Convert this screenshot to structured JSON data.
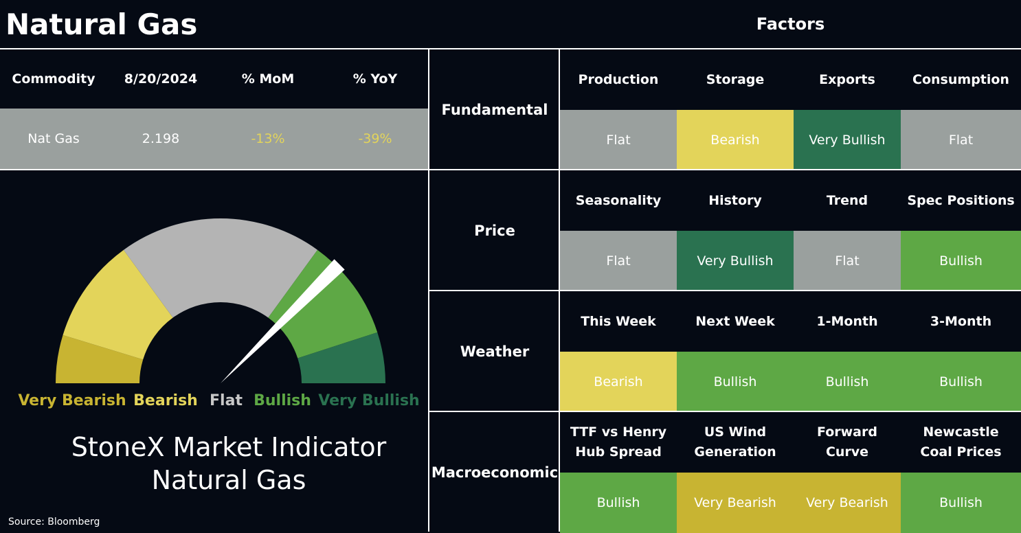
{
  "header": {
    "title": "Natural Gas",
    "factors": "Factors"
  },
  "summary": {
    "headers": [
      "Commodity",
      "8/20/2024",
      "% MoM",
      "% YoY"
    ],
    "row": [
      "Nat Gas",
      "2.198",
      "-13%",
      "-39%"
    ],
    "row_colors": [
      "#ffffff",
      "#ffffff",
      "#e3d45a",
      "#e3d45a"
    ]
  },
  "gauge": {
    "labels": [
      {
        "text": "Very Bearish",
        "color": "#c8b432"
      },
      {
        "text": "Bearish",
        "color": "#e3d45a"
      },
      {
        "text": "Flat",
        "color": "#c8c8c8"
      },
      {
        "text": "Bullish",
        "color": "#5ea845"
      },
      {
        "text": "Very Bullish",
        "color": "#2a7250"
      }
    ],
    "title": [
      "StoneX Market Indicator",
      "Natural Gas"
    ]
  },
  "source": "Source: Bloomberg",
  "groups": [
    {
      "name": "Fundamental",
      "items": [
        {
          "label": "Production",
          "signal": "Flat",
          "color": "#9aa09e"
        },
        {
          "label": "Storage",
          "signal": "Bearish",
          "color": "#e3d45a"
        },
        {
          "label": "Exports",
          "signal": "Very Bullish",
          "color": "#2a7250"
        },
        {
          "label": "Consumption",
          "signal": "Flat",
          "color": "#9aa09e"
        }
      ]
    },
    {
      "name": "Price",
      "items": [
        {
          "label": "Seasonality",
          "signal": "Flat",
          "color": "#9aa09e"
        },
        {
          "label": "History",
          "signal": "Very Bullish",
          "color": "#2a7250"
        },
        {
          "label": "Trend",
          "signal": "Flat",
          "color": "#9aa09e"
        },
        {
          "label": "Spec Positions",
          "signal": "Bullish",
          "color": "#5ea845"
        }
      ]
    },
    {
      "name": "Weather",
      "items": [
        {
          "label": "This Week",
          "signal": "Bearish",
          "color": "#e3d45a"
        },
        {
          "label": "Next Week",
          "signal": "Bullish",
          "color": "#5ea845"
        },
        {
          "label": "1-Month",
          "signal": "Bullish",
          "color": "#5ea845"
        },
        {
          "label": "3-Month",
          "signal": "Bullish",
          "color": "#5ea845"
        }
      ]
    },
    {
      "name": "Macroeconomic",
      "items": [
        {
          "label": "TTF vs Henry Hub Spread",
          "signal": "Bullish",
          "color": "#5ea845"
        },
        {
          "label": "US Wind Generation",
          "signal": "Very Bearish",
          "color": "#c8b432"
        },
        {
          "label": "Forward Curve",
          "signal": "Very Bearish",
          "color": "#c8b432"
        },
        {
          "label": "Newcastle Coal Prices",
          "signal": "Bullish",
          "color": "#5ea845"
        }
      ]
    }
  ]
}
